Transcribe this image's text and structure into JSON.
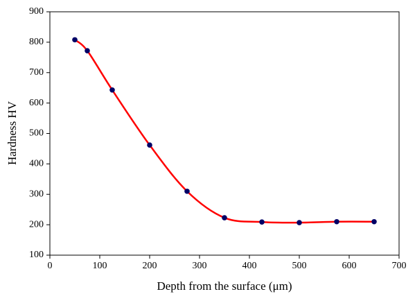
{
  "chart_data": {
    "type": "line",
    "xlabel": "Depth from the surface (μm)",
    "ylabel": "Hardness HV",
    "x": [
      50,
      75,
      125,
      200,
      275,
      350,
      425,
      500,
      575,
      650
    ],
    "values": [
      808,
      772,
      643,
      462,
      310,
      223,
      209,
      207,
      210,
      210
    ],
    "color": "#ff0000",
    "marker_color": "#000066",
    "xlim": [
      0,
      700
    ],
    "xticks": [
      0,
      100,
      200,
      300,
      400,
      500,
      600,
      700
    ],
    "ylim": [
      100,
      900
    ],
    "yticks": [
      100,
      200,
      300,
      400,
      500,
      600,
      700,
      800,
      900
    ],
    "grid": false
  }
}
